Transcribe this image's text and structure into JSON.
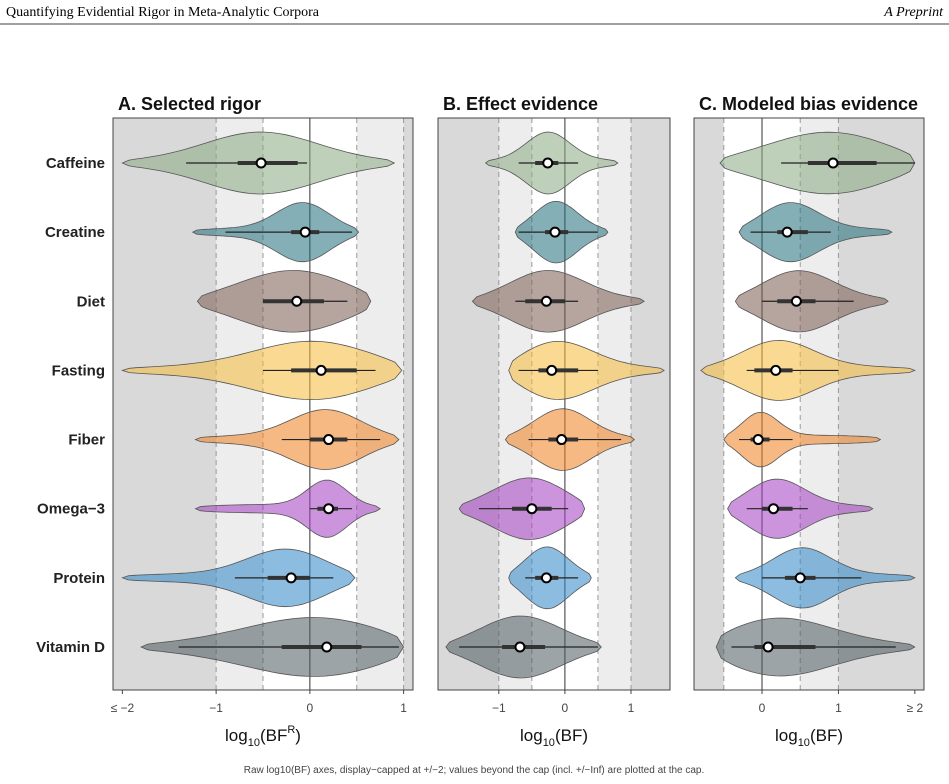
{
  "header": {
    "title": "Quantifying Evidential Rigor in Meta-Analytic Corpora",
    "tag": "A Preprint"
  },
  "caption": "Raw log10(BF) axes, display−capped at +/−2; values beyond the cap (incl. +/−Inf) are plotted at the cap.",
  "chart_data": [
    {
      "type": "violin",
      "title": "A. Selected rigor",
      "categories": [
        "Caffeine",
        "Creatine",
        "Diet",
        "Fasting",
        "Fiber",
        "Omega−3",
        "Protein",
        "Vitamin D"
      ],
      "colors": [
        "#8aa982",
        "#1f6e7a",
        "#7a5a50",
        "#f6b93b",
        "#f07f1e",
        "#a23cc0",
        "#2e86c8",
        "#4d5a5e"
      ],
      "xlabel_parts": [
        {
          "text": "log"
        },
        {
          "text": "10",
          "style": "sub"
        },
        {
          "text": "(BF"
        },
        {
          "text": "R",
          "style": "sup"
        },
        {
          "text": ")"
        }
      ],
      "xlim": [
        -2.1,
        1.1
      ],
      "xticks": [
        {
          "value": -2,
          "label": "≤ −2"
        },
        {
          "value": -1,
          "label": "−1"
        },
        0,
        1
      ],
      "ref_lines": [
        -1,
        -0.5,
        0.5,
        1
      ],
      "zero_line": 0,
      "stats": [
        {
          "min": -2,
          "lo": -1.32,
          "q1": -0.77,
          "median": -0.52,
          "q3": -0.13,
          "hi": -0.03,
          "max": 0.9
        },
        {
          "min": -1.25,
          "lo": -0.9,
          "q1": -0.2,
          "median": -0.05,
          "q3": 0.1,
          "hi": 0.45,
          "max": 0.52
        },
        {
          "min": -1.2,
          "lo": -0.5,
          "q1": -0.5,
          "median": -0.14,
          "q3": 0.15,
          "hi": 0.4,
          "max": 0.65
        },
        {
          "min": -2,
          "lo": -0.5,
          "q1": -0.2,
          "median": 0.12,
          "q3": 0.5,
          "hi": 0.7,
          "max": 0.98
        },
        {
          "min": -1.22,
          "lo": -0.3,
          "q1": 0,
          "median": 0.2,
          "q3": 0.4,
          "hi": 0.75,
          "max": 0.95
        },
        {
          "min": -1.22,
          "lo": 0,
          "q1": 0.08,
          "median": 0.2,
          "q3": 0.3,
          "hi": 0.45,
          "max": 0.75
        },
        {
          "min": -2,
          "lo": -0.8,
          "q1": -0.45,
          "median": -0.2,
          "q3": 0,
          "hi": 0.25,
          "max": 0.48
        },
        {
          "min": -1.8,
          "lo": -1.4,
          "q1": -0.3,
          "median": 0.18,
          "q3": 0.55,
          "hi": 0.95,
          "max": 1
        }
      ]
    },
    {
      "type": "violin",
      "title": "B. Effect evidence",
      "xlabel_parts": [
        {
          "text": "log"
        },
        {
          "text": "10",
          "style": "sub"
        },
        {
          "text": "(BF)"
        }
      ],
      "xlim": [
        -1.92,
        1.59
      ],
      "xticks": [
        {
          "value": -1,
          "label": "−1"
        },
        0,
        1
      ],
      "ref_lines": [
        -1,
        -0.5,
        0.5,
        1
      ],
      "zero_line": 0,
      "stats": [
        {
          "min": -1.2,
          "lo": -0.7,
          "q1": -0.45,
          "median": -0.26,
          "q3": -0.1,
          "hi": 0.2,
          "max": 0.8
        },
        {
          "min": -0.75,
          "lo": -0.7,
          "q1": -0.3,
          "median": -0.15,
          "q3": 0.05,
          "hi": 0.5,
          "max": 0.65
        },
        {
          "min": -1.4,
          "lo": -0.75,
          "q1": -0.6,
          "median": -0.28,
          "q3": 0,
          "hi": 0.2,
          "max": 1.2
        },
        {
          "min": -0.85,
          "lo": -0.7,
          "q1": -0.4,
          "median": -0.2,
          "q3": 0.2,
          "hi": 0.5,
          "max": 1.5
        },
        {
          "min": -0.9,
          "lo": -0.55,
          "q1": -0.25,
          "median": -0.05,
          "q3": 0.2,
          "hi": 0.85,
          "max": 1.05
        },
        {
          "min": -1.6,
          "lo": -1.3,
          "q1": -0.8,
          "median": -0.5,
          "q3": -0.2,
          "hi": 0.05,
          "max": 0.3
        },
        {
          "min": -0.85,
          "lo": -0.6,
          "q1": -0.45,
          "median": -0.28,
          "q3": -0.1,
          "hi": 0.2,
          "max": 0.4
        },
        {
          "min": -1.8,
          "lo": -1.6,
          "q1": -0.95,
          "median": -0.68,
          "q3": -0.3,
          "hi": 0.5,
          "max": 0.55
        }
      ]
    },
    {
      "type": "violin",
      "title": "C. Modeled bias evidence",
      "xlabel_parts": [
        {
          "text": "log"
        },
        {
          "text": "10",
          "style": "sub"
        },
        {
          "text": "(BF)"
        }
      ],
      "xlim": [
        -0.89,
        2.12
      ],
      "xticks": [
        0,
        1,
        {
          "value": 2,
          "label": "≥ 2"
        }
      ],
      "ref_lines": [
        -0.5,
        0.5,
        1
      ],
      "zero_line": 0,
      "stats": [
        {
          "min": -0.55,
          "lo": 0.25,
          "q1": 0.6,
          "median": 0.93,
          "q3": 1.5,
          "hi": 2,
          "max": 2
        },
        {
          "min": -0.3,
          "lo": -0.15,
          "q1": 0.2,
          "median": 0.33,
          "q3": 0.6,
          "hi": 0.9,
          "max": 1.7
        },
        {
          "min": -0.35,
          "lo": 0,
          "q1": 0.2,
          "median": 0.45,
          "q3": 0.7,
          "hi": 1.2,
          "max": 1.65
        },
        {
          "min": -0.8,
          "lo": -0.2,
          "q1": -0.1,
          "median": 0.18,
          "q3": 0.4,
          "hi": 1,
          "max": 2
        },
        {
          "min": -0.5,
          "lo": -0.3,
          "q1": -0.15,
          "median": -0.05,
          "q3": 0.1,
          "hi": 0.4,
          "max": 1.55
        },
        {
          "min": -0.45,
          "lo": -0.2,
          "q1": 0,
          "median": 0.15,
          "q3": 0.4,
          "hi": 0.6,
          "max": 1.45
        },
        {
          "min": -0.35,
          "lo": 0,
          "q1": 0.3,
          "median": 0.5,
          "q3": 0.7,
          "hi": 1.3,
          "max": 2
        },
        {
          "min": -0.6,
          "lo": -0.4,
          "q1": -0.1,
          "median": 0.08,
          "q3": 0.7,
          "hi": 1.75,
          "max": 2
        }
      ]
    }
  ]
}
